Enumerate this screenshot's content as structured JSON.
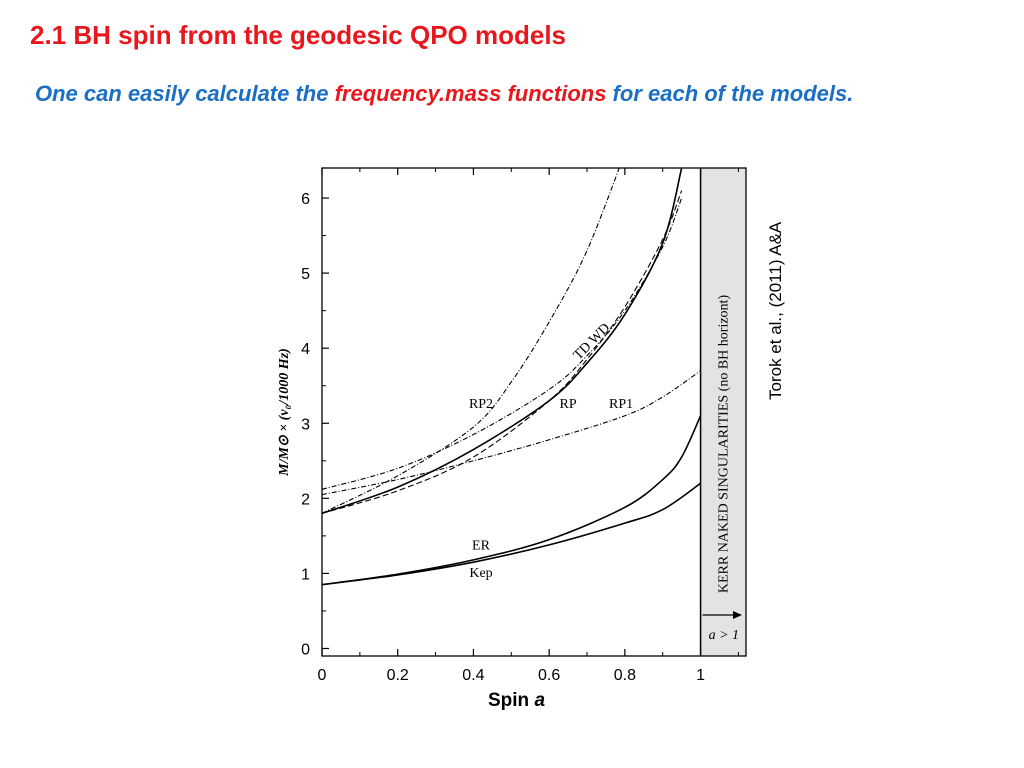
{
  "slide": {
    "title": "2.1  BH spin from the geodesic QPO models",
    "subtitle_before": "One  can  easily  calculate  the ",
    "subtitle_highlight1": "frequency.mass",
    "subtitle_gap": "  ",
    "subtitle_highlight2": "functions",
    "subtitle_after": "  for  each  of  the models.",
    "xlabel_prefix": "Spin ",
    "xlabel_var": "a",
    "citation": "Torok et al., (2011) A&A",
    "colors": {
      "title": "#e8171d",
      "subtitle": "#1a6fc4",
      "highlight": "#e8171d"
    }
  },
  "chart_data": {
    "type": "line",
    "xlabel": "Spin a",
    "ylabel": "M/M⊙ × (ν₀/1000 Hz)",
    "xlim": [
      0,
      1.12
    ],
    "ylim": [
      -0.1,
      6.4
    ],
    "xticks": [
      "0",
      "0.2",
      "0.4",
      "0.6",
      "0.8",
      "1"
    ],
    "yticks": [
      "0",
      "1",
      "2",
      "3",
      "4",
      "5",
      "6"
    ],
    "grid": false,
    "shaded_region": {
      "from": 1,
      "to": 1.12,
      "label": "KERR NAKED SINGULARITIES (no BH horizont)",
      "arrow_label": "a > 1"
    },
    "series": [
      {
        "name": "Kep",
        "style": "solid",
        "x": [
          0,
          0.2,
          0.4,
          0.6,
          0.8,
          0.9,
          1.0
        ],
        "y": [
          0.85,
          0.98,
          1.15,
          1.38,
          1.67,
          1.85,
          2.2
        ]
      },
      {
        "name": "ER",
        "style": "solid",
        "x": [
          0,
          0.2,
          0.4,
          0.6,
          0.8,
          0.9,
          0.95,
          1.0
        ],
        "y": [
          0.85,
          0.99,
          1.18,
          1.45,
          1.88,
          2.25,
          2.55,
          3.1
        ]
      },
      {
        "name": "RP1",
        "style": "dashdot",
        "x": [
          0,
          0.2,
          0.4,
          0.6,
          0.8,
          0.9,
          1.0
        ],
        "y": [
          2.05,
          2.25,
          2.5,
          2.78,
          3.1,
          3.35,
          3.7
        ]
      },
      {
        "name": "RP2",
        "style": "dashdot",
        "x": [
          0,
          0.2,
          0.4,
          0.5,
          0.6,
          0.7,
          0.8
        ],
        "y": [
          1.8,
          2.3,
          2.95,
          3.55,
          4.35,
          5.3,
          6.6
        ]
      },
      {
        "name": "RP",
        "style": "solid",
        "x": [
          0,
          0.2,
          0.4,
          0.6,
          0.7,
          0.8,
          0.9,
          0.95
        ],
        "y": [
          1.8,
          2.15,
          2.65,
          3.3,
          3.8,
          4.45,
          5.4,
          6.4
        ]
      },
      {
        "name": "TD",
        "style": "dashdot",
        "x": [
          0,
          0.2,
          0.4,
          0.6,
          0.7,
          0.8,
          0.9,
          0.95
        ],
        "y": [
          2.12,
          2.4,
          2.85,
          3.45,
          3.9,
          4.5,
          5.35,
          6.0
        ]
      },
      {
        "name": "WD",
        "style": "dashed",
        "x": [
          0,
          0.2,
          0.4,
          0.6,
          0.7,
          0.8,
          0.9,
          0.95
        ],
        "y": [
          1.8,
          2.1,
          2.55,
          3.3,
          3.85,
          4.55,
          5.45,
          6.1
        ]
      }
    ],
    "curve_labels": [
      {
        "text": "RP2",
        "x": 0.42,
        "y": 3.2
      },
      {
        "text": "RP",
        "x": 0.65,
        "y": 3.2
      },
      {
        "text": "RP1",
        "x": 0.79,
        "y": 3.2
      },
      {
        "text": "ER",
        "x": 0.42,
        "y": 1.32
      },
      {
        "text": "Kep",
        "x": 0.42,
        "y": 0.95
      },
      {
        "text": "TD  WD",
        "x": 0.72,
        "y": 4.05,
        "rotate": -45
      }
    ]
  }
}
